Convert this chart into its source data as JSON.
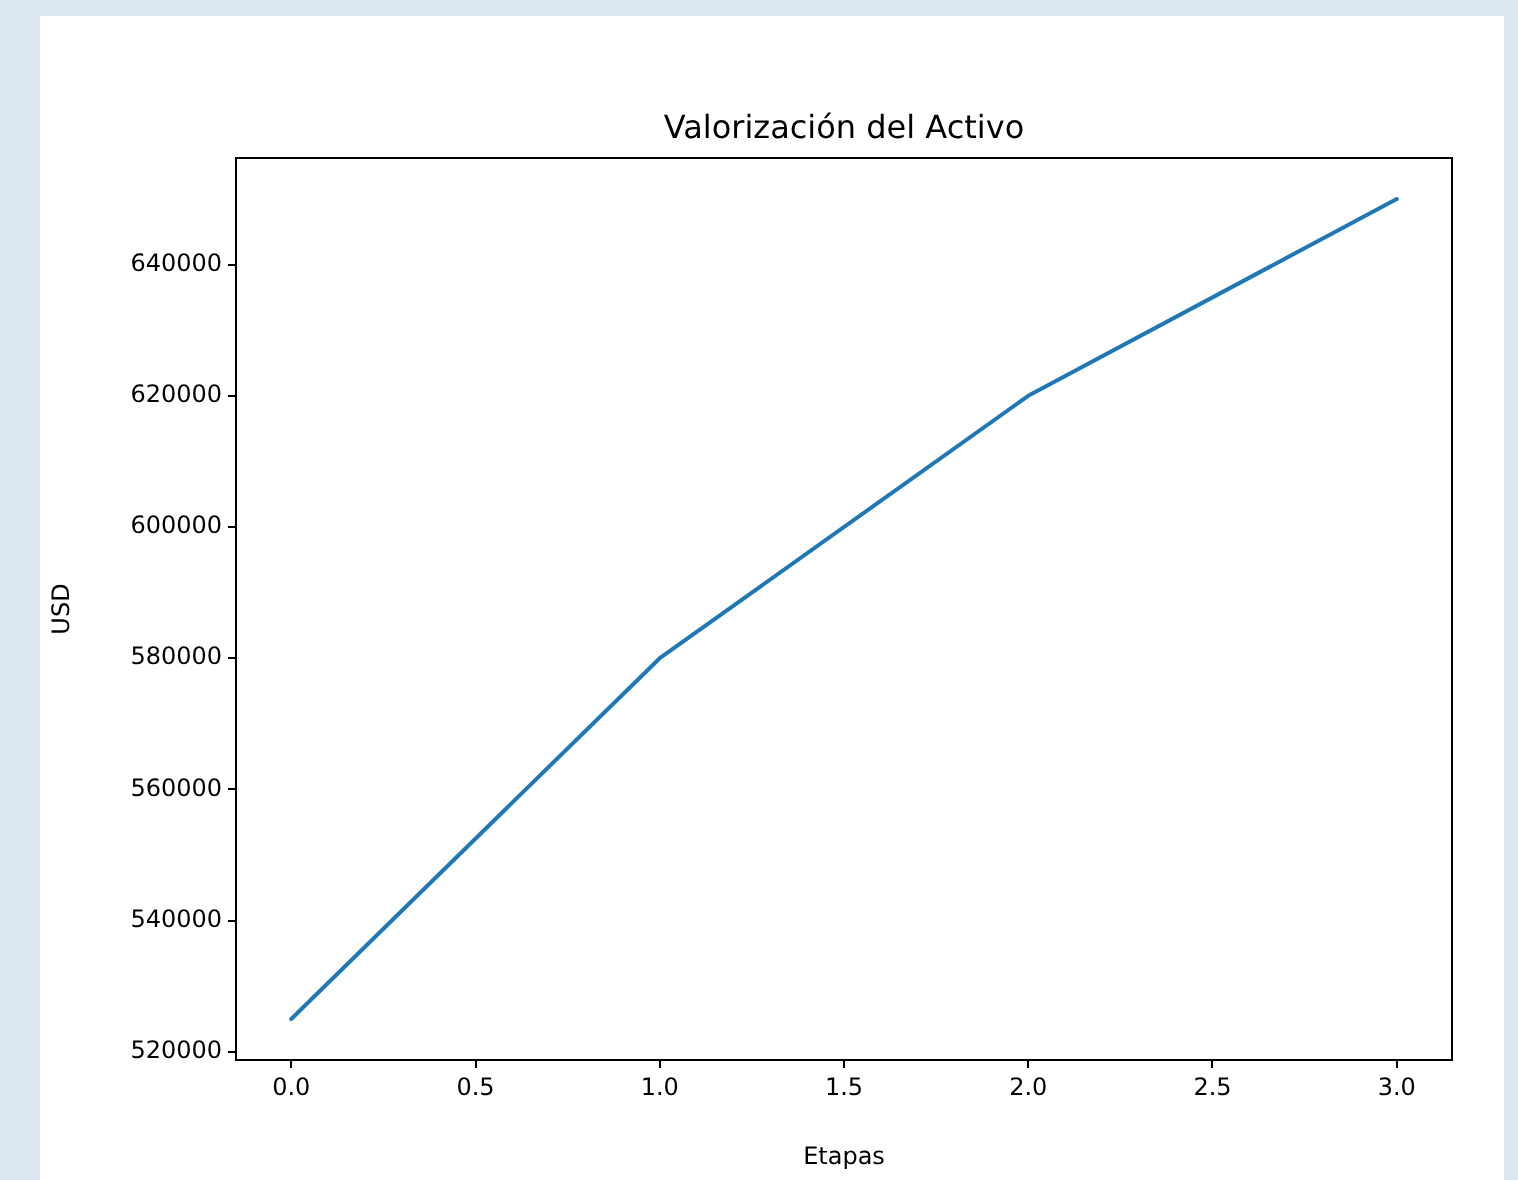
{
  "chart_data": {
    "type": "line",
    "title": "Valorización del Activo",
    "xlabel": "Etapas",
    "ylabel": "USD",
    "x": [
      0,
      1,
      2,
      3
    ],
    "series": [
      {
        "color": "#1f77b4",
        "values": [
          525000,
          580000,
          620000,
          650000
        ]
      }
    ],
    "xlim": [
      -0.15,
      3.15
    ],
    "xticks": [
      {
        "value": 0,
        "label": "0.0"
      },
      {
        "value": 0.5,
        "label": "0.5"
      },
      {
        "value": 1,
        "label": "1.0"
      },
      {
        "value": 1.5,
        "label": "1.5"
      },
      {
        "value": 2,
        "label": "2.0"
      },
      {
        "value": 2.5,
        "label": "2.5"
      },
      {
        "value": 3,
        "label": "3.0"
      }
    ],
    "ylim": [
      518750,
      656250
    ],
    "yticks": [
      520000,
      540000,
      560000,
      580000,
      600000,
      620000,
      640000
    ],
    "grid": false,
    "legend": false,
    "marker": "none",
    "line_style": "solid"
  }
}
